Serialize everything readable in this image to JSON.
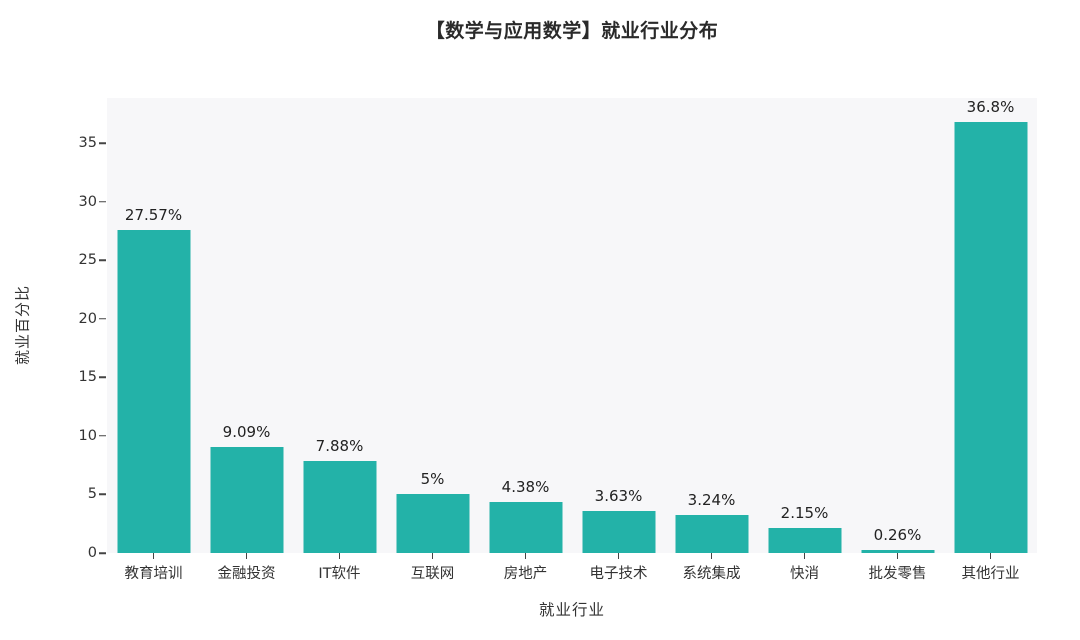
{
  "chart_data": {
    "type": "bar",
    "title": "【数学与应用数学】就业行业分布",
    "xlabel": "就业行业",
    "ylabel": "就业百分比",
    "categories": [
      "教育培训",
      "金融投资",
      "IT软件",
      "互联网",
      "房地产",
      "电子技术",
      "系统集成",
      "快消",
      "批发零售",
      "其他行业"
    ],
    "values": [
      27.57,
      9.09,
      7.88,
      5,
      4.38,
      3.63,
      3.24,
      2.15,
      0.26,
      36.8
    ],
    "value_labels": [
      "27.57%",
      "9.09%",
      "7.88%",
      "5%",
      "4.38%",
      "3.63%",
      "3.24%",
      "2.15%",
      "0.26%",
      "36.8%"
    ],
    "yticks": [
      0,
      5,
      10,
      15,
      20,
      25,
      30,
      35
    ],
    "ylim": [
      0,
      38.85
    ],
    "grid": false,
    "legend": "none",
    "bar_color": "#23b2a8",
    "plot_bg": "#f7f7f9",
    "figure_bg": "#ffffff",
    "text_color": "#333333"
  }
}
